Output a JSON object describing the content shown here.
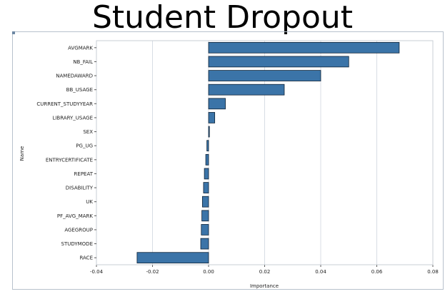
{
  "chart_data": {
    "type": "bar",
    "orientation": "horizontal",
    "title": "Student Dropout",
    "xlabel": "Importance",
    "ylabel": "Name",
    "xlim": [
      -0.04,
      0.08
    ],
    "xticks": [
      "-0.04",
      "-0.02",
      "0.00",
      "0.02",
      "0.04",
      "0.06",
      "0.08"
    ],
    "grid": true,
    "categories": [
      "AVGMARK",
      "NB_FAIL",
      "NAMEDAWARD",
      "BB_USAGE",
      "CURRENT_STUDYYEAR",
      "LIBRARY_USAGE",
      "SEX",
      "PG_UG",
      "ENTRYCERTIFICATE",
      "REPEAT",
      "DISABILITY",
      "UK",
      "PF_AVG_MARK",
      "AGEGROUP",
      "STUDYMODE",
      "RACE"
    ],
    "values": [
      0.068,
      0.05,
      0.04,
      0.027,
      0.006,
      0.0022,
      0.0003,
      -0.0006,
      -0.001,
      -0.0015,
      -0.0018,
      -0.0022,
      -0.0024,
      -0.0026,
      -0.0028,
      -0.0255
    ],
    "colors": {
      "bar": "#3b74a8",
      "bar_edge": "#0e2236",
      "grid": "#d8dde4",
      "axis": "#555555"
    }
  }
}
